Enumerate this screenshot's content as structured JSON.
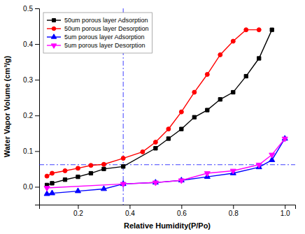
{
  "chart_data": {
    "type": "line",
    "x_label": "Relative Humidity(P/Po)",
    "y_label": "Water Vapor Volume (cm³/g)",
    "xlim": [
      0.05,
      1.04
    ],
    "ylim": [
      -0.05,
      0.5
    ],
    "xticks": [
      0.2,
      0.4,
      0.6,
      0.8,
      {
        "value": 1.0,
        "label": "1.0"
      }
    ],
    "yticks": [
      {
        "value": 0.0,
        "label": "0.0"
      },
      0.1,
      0.2,
      0.3,
      0.4,
      0.5
    ],
    "grid": false,
    "legend": "upper left",
    "reference_lines": {
      "x": [
        0.375
      ],
      "y": [
        0.062
      ],
      "color": "blue",
      "line_style": "dashdot"
    },
    "series": [
      {
        "name": "50um porous layer Adsorption",
        "color": "black",
        "marker": "square",
        "x": [
          0.08,
          0.1,
          0.15,
          0.2,
          0.25,
          0.3,
          0.375,
          0.5,
          0.55,
          0.6,
          0.65,
          0.7,
          0.75,
          0.8,
          0.85,
          0.9,
          0.95
        ],
        "values": [
          0.005,
          0.01,
          0.02,
          0.028,
          0.038,
          0.05,
          0.057,
          0.108,
          0.135,
          0.162,
          0.195,
          0.215,
          0.245,
          0.265,
          0.31,
          0.36,
          0.44
        ]
      },
      {
        "name": "50um porous layer Desorption",
        "color": "red",
        "marker": "circle",
        "x": [
          0.08,
          0.1,
          0.15,
          0.2,
          0.25,
          0.3,
          0.375,
          0.45,
          0.5,
          0.55,
          0.6,
          0.65,
          0.7,
          0.75,
          0.8,
          0.85,
          0.9
        ],
        "values": [
          0.03,
          0.038,
          0.045,
          0.052,
          0.06,
          0.063,
          0.08,
          0.098,
          0.125,
          0.162,
          0.21,
          0.265,
          0.315,
          0.37,
          0.408,
          0.44,
          0.44
        ]
      },
      {
        "name": "5um porous layer Adsorption",
        "color": "blue",
        "marker": "triangle-up",
        "x": [
          0.08,
          0.1,
          0.2,
          0.3,
          0.375,
          0.5,
          0.6,
          0.7,
          0.8,
          0.9,
          0.95,
          1.0
        ],
        "values": [
          -0.02,
          -0.018,
          -0.012,
          -0.006,
          0.008,
          0.012,
          0.018,
          0.028,
          0.038,
          0.055,
          0.075,
          0.135
        ]
      },
      {
        "name": "5um porous layer Desorption",
        "color": "magenta",
        "marker": "triangle-down",
        "x": [
          0.08,
          0.375,
          0.5,
          0.6,
          0.7,
          0.8,
          0.9,
          0.95,
          1.0
        ],
        "values": [
          -0.003,
          0.008,
          0.012,
          0.018,
          0.038,
          0.045,
          0.062,
          0.09,
          0.135
        ]
      }
    ]
  }
}
